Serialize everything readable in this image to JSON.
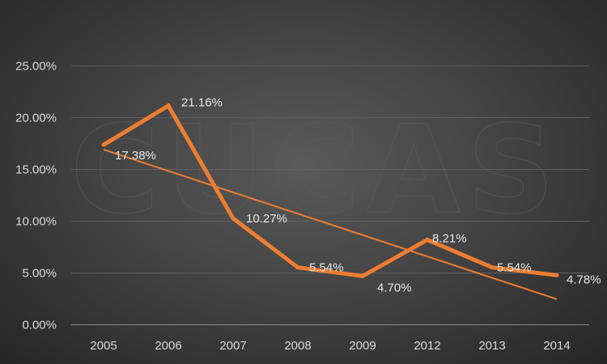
{
  "chart_data": {
    "type": "line",
    "categories": [
      "2005",
      "2006",
      "2007",
      "2008",
      "2009",
      "2012",
      "2013",
      "2014"
    ],
    "series": [
      {
        "values": [
          17.38,
          21.16,
          10.27,
          5.54,
          4.7,
          8.21,
          5.54,
          4.78
        ],
        "data_labels": [
          "17.38%",
          "21.16%",
          "10.27%",
          "5.54%",
          "4.70%",
          "8.21%",
          "5.54%",
          "4.78%"
        ],
        "color": "#ed7d31"
      }
    ],
    "trendline": {
      "type": "linear",
      "color": "#ed7d31"
    },
    "y_ticks": [
      "0.00%",
      "5.00%",
      "10.00%",
      "15.00%",
      "20.00%",
      "25.00%"
    ],
    "ylim": [
      0,
      25
    ],
    "grid": true,
    "title": "",
    "xlabel": "",
    "ylabel": "",
    "watermark": "CUCAS",
    "colors": {
      "background": "#3c3c3c",
      "gridline": "#5e5e5e",
      "text": "#d9d9d9"
    }
  }
}
